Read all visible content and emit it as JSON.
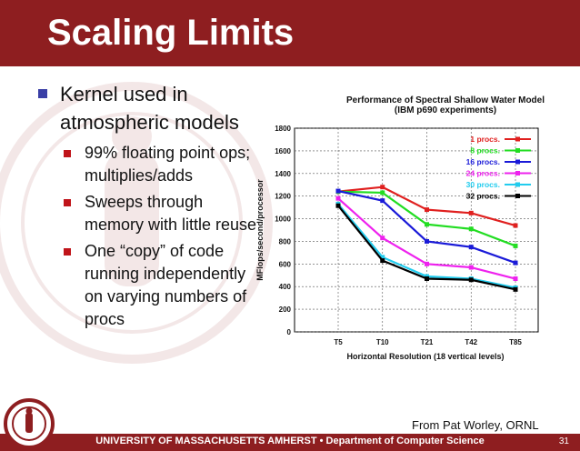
{
  "slide": {
    "title": "Scaling Limits",
    "bullets": [
      {
        "text": "Kernel used in atmospheric models",
        "sub": [
          "99% floating point ops; multiplies/adds",
          "Sweeps through memory with little reuse",
          "One “copy” of code running independently on varying numbers of procs"
        ]
      }
    ],
    "credit": "From Pat Worley, ORNL",
    "footer": "UNIVERSITY OF MASSACHUSETTS AMHERST • Department of Computer Science",
    "page_number": "31"
  },
  "colors": {
    "brand": "#8e1e20",
    "bullet_main": "#3a3fa6",
    "bullet_sub": "#c0141a"
  },
  "chart_data": {
    "type": "line",
    "title": "Performance of Spectral Shallow Water Model",
    "subtitle": "(IBM p690 experiments)",
    "xlabel": "Horizontal Resolution (18 vertical levels)",
    "ylabel": "MFlops/second/processor",
    "categories": [
      "T5",
      "T10",
      "T21",
      "T42",
      "T85"
    ],
    "ylim": [
      0,
      1800
    ],
    "yticks": [
      "0",
      "200",
      "400",
      "600",
      "800",
      "1000",
      "1200",
      "1400",
      "1600",
      "1800"
    ],
    "grid": true,
    "legend_position": "top-right",
    "series": [
      {
        "name": "1 procs.",
        "color": "#e0201f",
        "values": [
          1240,
          1280,
          1080,
          1050,
          940
        ]
      },
      {
        "name": "8 procs.",
        "color": "#22dd22",
        "values": [
          1240,
          1230,
          950,
          910,
          760
        ]
      },
      {
        "name": "16 procs.",
        "color": "#1a1ad8",
        "values": [
          1245,
          1160,
          800,
          750,
          610
        ]
      },
      {
        "name": "24 procs.",
        "color": "#ee22ee",
        "values": [
          1180,
          830,
          600,
          570,
          470
        ]
      },
      {
        "name": "30 procs.",
        "color": "#22ccee",
        "values": [
          1130,
          660,
          490,
          470,
          390
        ]
      },
      {
        "name": "32 procs.",
        "color": "#000000",
        "values": [
          1115,
          630,
          470,
          460,
          375
        ]
      }
    ]
  }
}
